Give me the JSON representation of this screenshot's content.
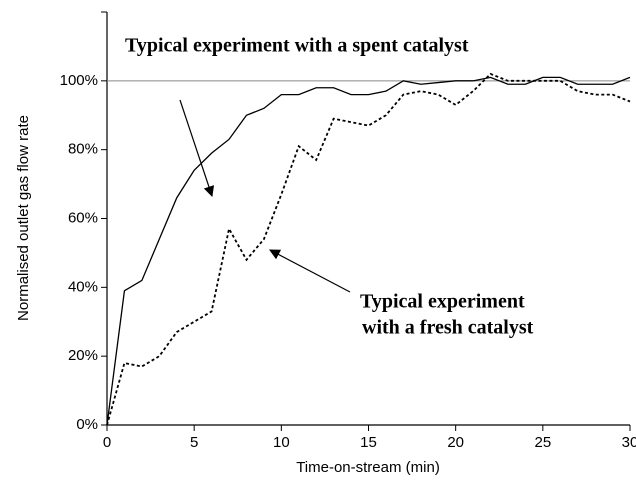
{
  "chart_data": {
    "type": "line",
    "xlabel": "Time-on-stream (min)",
    "ylabel": "Normalised outlet gas flow rate",
    "x": [
      0,
      1,
      2,
      3,
      4,
      5,
      6,
      7,
      8,
      9,
      10,
      11,
      12,
      13,
      14,
      15,
      16,
      17,
      18,
      19,
      20,
      21,
      22,
      23,
      24,
      25,
      26,
      27,
      28,
      29,
      30
    ],
    "series": [
      {
        "color": "#000000",
        "dash": "solid",
        "values": [
          0,
          39,
          42,
          54,
          66,
          74,
          79,
          83,
          90,
          92,
          96,
          96,
          98,
          98,
          96,
          96,
          97,
          100,
          99,
          99.5,
          100,
          100,
          101,
          99,
          99,
          101,
          101,
          99,
          99,
          99,
          101
        ]
      },
      {
        "color": "#000000",
        "dash": "dotted",
        "values": [
          0,
          18,
          17,
          20,
          27,
          30,
          33,
          57,
          48,
          54,
          67,
          81,
          77,
          89,
          88,
          87,
          90,
          96,
          97,
          96,
          93,
          97,
          102,
          100,
          100,
          100,
          100,
          97,
          96,
          96,
          94
        ]
      }
    ],
    "xlim": [
      0,
      30
    ],
    "xticks": [
      0,
      5,
      10,
      15,
      20,
      25,
      30
    ],
    "ylim": [
      0,
      120
    ],
    "yticks": [
      {
        "value": 0,
        "label": "0%"
      },
      {
        "value": 20,
        "label": "20%"
      },
      {
        "value": 40,
        "label": "40%"
      },
      {
        "value": 60,
        "label": "60%"
      },
      {
        "value": 80,
        "label": "80%"
      },
      {
        "value": 100,
        "label": "100%"
      }
    ],
    "reference_line": 100,
    "annotations": [
      {
        "lines": [
          "Typical experiment with a spent catalyst"
        ]
      },
      {
        "lines": [
          "Typical experiment",
          "with a fresh catalyst"
        ]
      }
    ]
  }
}
